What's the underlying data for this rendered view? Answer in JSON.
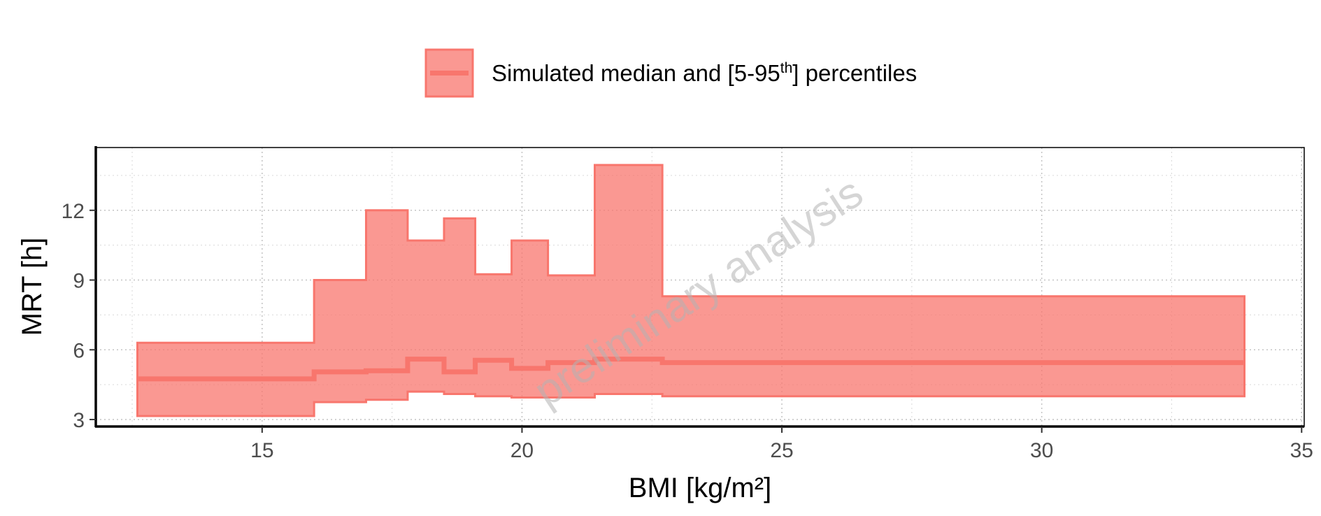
{
  "chart_data": {
    "type": "area",
    "title": "",
    "xlabel": "BMI [kg/m²]",
    "ylabel": "MRT [h]",
    "xlim": [
      11.8,
      35.05
    ],
    "ylim": [
      2.7,
      14.7
    ],
    "xticks": [
      15,
      20,
      25,
      30,
      35
    ],
    "yticks": [
      3,
      6,
      9,
      12
    ],
    "grid": true,
    "legend_position": "top",
    "legend": {
      "label_main": "Simulated median and [5-95",
      "label_sup": "th",
      "label_end": "] percentiles"
    },
    "watermark": "preliminary analysis",
    "colors": {
      "fill": "#F8766D",
      "fill_opacity": 0.75,
      "line": "#F8766D"
    },
    "series": [
      {
        "bins": [
          {
            "x0": 12.6,
            "x1": 16.0,
            "median": 4.75,
            "p5": 3.15,
            "p95": 6.3
          },
          {
            "x0": 16.0,
            "x1": 17.0,
            "median": 5.05,
            "p5": 3.75,
            "p95": 9.0
          },
          {
            "x0": 17.0,
            "x1": 17.8,
            "median": 5.1,
            "p5": 3.85,
            "p95": 12.0
          },
          {
            "x0": 17.8,
            "x1": 18.5,
            "median": 5.6,
            "p5": 4.2,
            "p95": 10.7
          },
          {
            "x0": 18.5,
            "x1": 19.1,
            "median": 5.05,
            "p5": 4.1,
            "p95": 11.65
          },
          {
            "x0": 19.1,
            "x1": 19.8,
            "median": 5.55,
            "p5": 4.0,
            "p95": 9.25
          },
          {
            "x0": 19.8,
            "x1": 20.5,
            "median": 5.2,
            "p5": 3.95,
            "p95": 10.7
          },
          {
            "x0": 20.5,
            "x1": 21.4,
            "median": 5.45,
            "p5": 3.95,
            "p95": 9.2
          },
          {
            "x0": 21.4,
            "x1": 22.7,
            "median": 5.6,
            "p5": 4.1,
            "p95": 13.95
          },
          {
            "x0": 22.7,
            "x1": 33.9,
            "median": 5.45,
            "p5": 4.0,
            "p95": 8.3
          }
        ]
      }
    ]
  }
}
